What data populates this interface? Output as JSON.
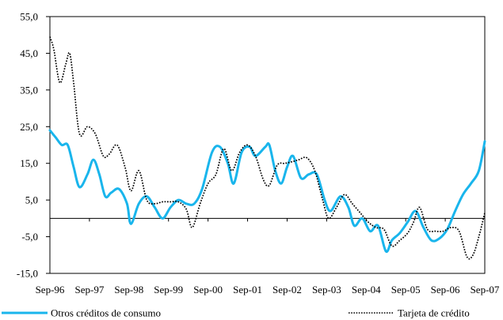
{
  "chart_data": {
    "type": "line",
    "title": "",
    "xlabel": "",
    "ylabel": "",
    "ylim": [
      -15,
      55
    ],
    "yticks": [
      -15,
      -5,
      5,
      15,
      25,
      35,
      45,
      55
    ],
    "ytick_labels": [
      "-15,0",
      "-5,0",
      "5,0",
      "15,0",
      "25,0",
      "35,0",
      "45,0",
      "55,0"
    ],
    "reference_line": 0,
    "grid": false,
    "legend_position": "bottom",
    "xlim": [
      0,
      11
    ],
    "xtick_labels": [
      "Sep-96",
      "Sep-97",
      "Sep-98",
      "Sep-99",
      "Sep-00",
      "Sep-01",
      "Sep-02",
      "Sep-03",
      "Sep-04",
      "Sep-05",
      "Sep-06",
      "Sep-07"
    ],
    "xticks": [
      0,
      1,
      2,
      3,
      4,
      5,
      6,
      7,
      8,
      9,
      10,
      11
    ],
    "series": [
      {
        "name": "Otros créditos de consumo",
        "style": "solid",
        "color": "#19b5ec",
        "points": [
          [
            0.0,
            24.0
          ],
          [
            0.15,
            22.0
          ],
          [
            0.3,
            20.0
          ],
          [
            0.45,
            20.0
          ],
          [
            0.6,
            14.0
          ],
          [
            0.75,
            8.5
          ],
          [
            0.95,
            12.0
          ],
          [
            1.1,
            16.0
          ],
          [
            1.25,
            12.0
          ],
          [
            1.4,
            6.0
          ],
          [
            1.55,
            7.0
          ],
          [
            1.75,
            8.0
          ],
          [
            1.95,
            4.0
          ],
          [
            2.05,
            -1.5
          ],
          [
            2.25,
            4.0
          ],
          [
            2.45,
            6.0
          ],
          [
            2.65,
            3.0
          ],
          [
            2.85,
            0.0
          ],
          [
            3.05,
            3.0
          ],
          [
            3.25,
            5.0
          ],
          [
            3.45,
            4.0
          ],
          [
            3.65,
            4.0
          ],
          [
            3.85,
            8.0
          ],
          [
            4.1,
            18.0
          ],
          [
            4.3,
            19.5
          ],
          [
            4.5,
            15.0
          ],
          [
            4.65,
            9.5
          ],
          [
            4.85,
            18.0
          ],
          [
            5.05,
            19.5
          ],
          [
            5.2,
            17.0
          ],
          [
            5.45,
            19.5
          ],
          [
            5.55,
            20.0
          ],
          [
            5.7,
            13.0
          ],
          [
            5.85,
            9.5
          ],
          [
            6.0,
            14.0
          ],
          [
            6.15,
            17.0
          ],
          [
            6.35,
            11.0
          ],
          [
            6.55,
            12.0
          ],
          [
            6.75,
            12.0
          ],
          [
            6.95,
            5.0
          ],
          [
            7.1,
            2.0
          ],
          [
            7.35,
            6.0
          ],
          [
            7.55,
            3.0
          ],
          [
            7.7,
            -2.0
          ],
          [
            7.9,
            0.0
          ],
          [
            8.1,
            -3.5
          ],
          [
            8.3,
            -2.0
          ],
          [
            8.5,
            -9.0
          ],
          [
            8.65,
            -6.0
          ],
          [
            8.85,
            -4.0
          ],
          [
            9.05,
            -1.0
          ],
          [
            9.25,
            2.0
          ],
          [
            9.45,
            -2.5
          ],
          [
            9.65,
            -6.0
          ],
          [
            9.85,
            -5.5
          ],
          [
            10.05,
            -3.0
          ],
          [
            10.25,
            2.0
          ],
          [
            10.45,
            6.5
          ],
          [
            10.65,
            9.5
          ],
          [
            10.85,
            13.0
          ],
          [
            11.0,
            21.0
          ]
        ]
      },
      {
        "name": "Tarjeta de crédito",
        "style": "dotted",
        "color": "#000000",
        "points": [
          [
            0.0,
            49.5
          ],
          [
            0.1,
            46.0
          ],
          [
            0.25,
            37.0
          ],
          [
            0.4,
            42.0
          ],
          [
            0.5,
            45.0
          ],
          [
            0.6,
            37.0
          ],
          [
            0.75,
            23.0
          ],
          [
            0.95,
            25.0
          ],
          [
            1.15,
            23.0
          ],
          [
            1.35,
            17.0
          ],
          [
            1.5,
            17.5
          ],
          [
            1.7,
            20.0
          ],
          [
            1.9,
            14.0
          ],
          [
            2.05,
            7.5
          ],
          [
            2.25,
            13.0
          ],
          [
            2.45,
            5.0
          ],
          [
            2.65,
            4.0
          ],
          [
            2.85,
            4.5
          ],
          [
            3.05,
            4.5
          ],
          [
            3.25,
            4.5
          ],
          [
            3.45,
            2.5
          ],
          [
            3.6,
            -2.5
          ],
          [
            3.8,
            4.0
          ],
          [
            4.0,
            9.5
          ],
          [
            4.2,
            12.0
          ],
          [
            4.4,
            19.0
          ],
          [
            4.6,
            13.0
          ],
          [
            4.8,
            18.0
          ],
          [
            5.0,
            20.0
          ],
          [
            5.2,
            17.0
          ],
          [
            5.4,
            10.5
          ],
          [
            5.55,
            9.0
          ],
          [
            5.75,
            14.5
          ],
          [
            5.95,
            15.0
          ],
          [
            6.15,
            15.5
          ],
          [
            6.3,
            16.0
          ],
          [
            6.5,
            16.5
          ],
          [
            6.7,
            13.0
          ],
          [
            6.9,
            5.0
          ],
          [
            7.05,
            0.0
          ],
          [
            7.25,
            3.0
          ],
          [
            7.45,
            6.5
          ],
          [
            7.65,
            4.0
          ],
          [
            7.85,
            1.5
          ],
          [
            8.05,
            -1.0
          ],
          [
            8.25,
            -2.5
          ],
          [
            8.45,
            -3.0
          ],
          [
            8.65,
            -7.5
          ],
          [
            8.85,
            -6.0
          ],
          [
            9.05,
            -4.0
          ],
          [
            9.2,
            -1.0
          ],
          [
            9.35,
            3.0
          ],
          [
            9.55,
            -3.0
          ],
          [
            9.75,
            -3.5
          ],
          [
            9.95,
            -3.5
          ],
          [
            10.15,
            -2.5
          ],
          [
            10.35,
            -3.5
          ],
          [
            10.55,
            -10.5
          ],
          [
            10.7,
            -10.0
          ],
          [
            10.85,
            -5.0
          ],
          [
            11.0,
            1.5
          ]
        ]
      }
    ]
  }
}
